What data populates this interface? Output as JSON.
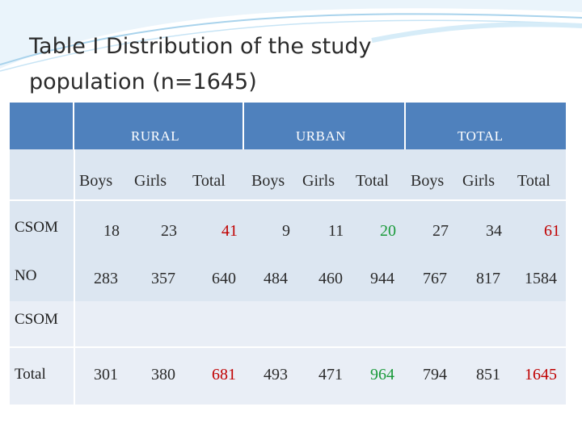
{
  "title": {
    "line1": "Table I   Distribution of the study",
    "line2": "population (n=1645)"
  },
  "groups": [
    "RURAL",
    "URBAN",
    "TOTAL"
  ],
  "subheaders": [
    "Boys",
    "Girls",
    "Total",
    "Boys",
    "Girls",
    "Total",
    "Boys",
    "Girls",
    "Total"
  ],
  "rows": [
    {
      "label": "CSOM",
      "values": [
        "18",
        "23",
        "41",
        "9",
        "11",
        "20",
        "27",
        "34",
        "61"
      ]
    },
    {
      "label": "NO",
      "label2": "CSOM",
      "values": [
        "283",
        "357",
        "640",
        "484",
        "460",
        "944",
        "767",
        "817",
        "1584"
      ]
    },
    {
      "label": "Total",
      "values": [
        "301",
        "380",
        "681",
        "493",
        "471",
        "964",
        "794",
        "851",
        "1645"
      ]
    }
  ],
  "colors": {
    "header": "#4f81bd",
    "body": "#dce6f1",
    "red": "#c00000",
    "green": "#1a9a3a"
  }
}
